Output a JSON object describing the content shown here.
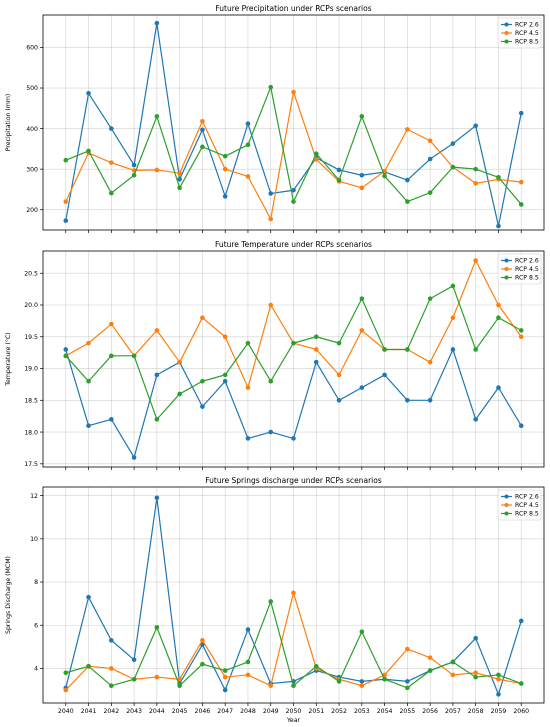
{
  "chart_data": {
    "type": "line",
    "x": [
      2040,
      2041,
      2042,
      2043,
      2044,
      2045,
      2046,
      2047,
      2048,
      2049,
      2050,
      2051,
      2052,
      2053,
      2054,
      2055,
      2056,
      2057,
      2058,
      2059,
      2060
    ],
    "xlabel": "Year",
    "grid": true,
    "legend": "top-right",
    "colors": {
      "RCP 2.6": "#1f77b4",
      "RCP 4.5": "#ff7f0e",
      "RCP 8.5": "#2ca02c"
    },
    "panels": [
      {
        "title": "Future Precipitation under RCPs scenarios",
        "ylabel": "Precipitation (mm)",
        "ylim": [
          150,
          680
        ],
        "yticks": [
          200,
          300,
          400,
          500,
          600
        ],
        "ytick_labels": [
          "200",
          "300",
          "400",
          "500",
          "600"
        ],
        "series": [
          {
            "name": "RCP 2.6",
            "values": [
              173,
              487,
              400,
              310,
              660,
              275,
              397,
              233,
              412,
              240,
              248,
              328,
              298,
              285,
              293,
              273,
              325,
              363,
              407,
              160,
              438
            ]
          },
          {
            "name": "RCP 4.5",
            "values": [
              220,
              340,
              316,
              297,
              298,
              290,
              418,
              300,
              282,
              177,
              490,
              324,
              270,
              254,
              295,
              398,
              370,
              305,
              265,
              275,
              268
            ]
          },
          {
            "name": "RCP 8.5",
            "values": [
              322,
              345,
              241,
              285,
              430,
              254,
              355,
              332,
              360,
              502,
              220,
              338,
              273,
              430,
              283,
              220,
              242,
              305,
              300,
              280,
              213
            ]
          }
        ]
      },
      {
        "title": "Future Temperature under RCPs scenarios",
        "ylabel": "Temperature (°C)",
        "ylim": [
          17.45,
          20.85
        ],
        "yticks": [
          17.5,
          18.0,
          18.5,
          19.0,
          19.5,
          20.0,
          20.5
        ],
        "ytick_labels": [
          "17.5",
          "18.0",
          "18.5",
          "19.0",
          "19.5",
          "20.0",
          "20.5"
        ],
        "series": [
          {
            "name": "RCP 2.6",
            "values": [
              19.3,
              18.1,
              18.2,
              17.6,
              18.9,
              19.1,
              18.4,
              18.8,
              17.9,
              18.0,
              17.9,
              19.1,
              18.5,
              18.7,
              18.9,
              18.5,
              18.5,
              19.3,
              18.2,
              18.7,
              18.1
            ]
          },
          {
            "name": "RCP 4.5",
            "values": [
              19.2,
              19.4,
              19.7,
              19.2,
              19.6,
              19.1,
              19.8,
              19.5,
              18.7,
              20.0,
              19.4,
              19.3,
              18.9,
              19.6,
              19.3,
              19.3,
              19.1,
              19.8,
              20.7,
              20.0,
              19.5
            ]
          },
          {
            "name": "RCP 8.5",
            "values": [
              19.2,
              18.8,
              19.2,
              19.2,
              18.2,
              18.6,
              18.8,
              18.9,
              19.4,
              18.8,
              19.4,
              19.5,
              19.4,
              20.1,
              19.3,
              19.3,
              20.1,
              20.3,
              19.3,
              19.8,
              19.6
            ]
          }
        ]
      },
      {
        "title": "Future Springs discharge under RCPs scenarios",
        "ylabel": "Springs Discharge (MCM)",
        "ylim": [
          2.4,
          12.4
        ],
        "yticks": [
          4,
          6,
          8,
          10,
          12
        ],
        "ytick_labels": [
          "4",
          "6",
          "8",
          "10",
          "12"
        ],
        "series": [
          {
            "name": "RCP 2.6",
            "values": [
              3.1,
              7.3,
              5.3,
              4.4,
              11.9,
              3.3,
              5.1,
              3.0,
              5.8,
              3.3,
              3.4,
              3.9,
              3.6,
              3.4,
              3.5,
              3.4,
              3.9,
              4.3,
              5.4,
              2.8,
              6.2
            ]
          },
          {
            "name": "RCP 4.5",
            "values": [
              3.0,
              4.1,
              4.0,
              3.5,
              3.6,
              3.5,
              5.3,
              3.6,
              3.7,
              3.2,
              7.5,
              4.0,
              3.5,
              3.2,
              3.7,
              4.9,
              4.5,
              3.7,
              3.8,
              3.5,
              3.3
            ]
          },
          {
            "name": "RCP 8.5",
            "values": [
              3.8,
              4.1,
              3.2,
              3.5,
              5.9,
              3.2,
              4.2,
              3.9,
              4.3,
              7.1,
              3.2,
              4.1,
              3.4,
              5.7,
              3.5,
              3.1,
              3.9,
              4.3,
              3.6,
              3.7,
              3.3
            ]
          }
        ]
      }
    ]
  }
}
